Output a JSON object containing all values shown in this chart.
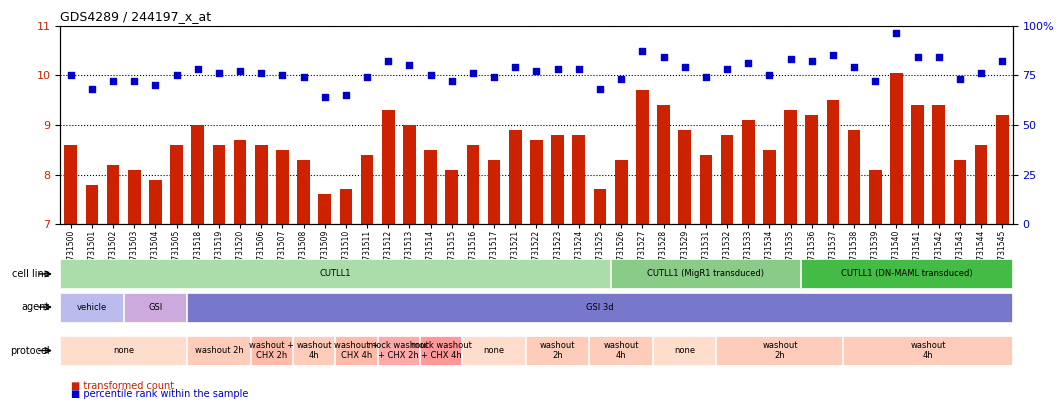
{
  "title": "GDS4289 / 244197_x_at",
  "samples": [
    "GSM731500",
    "GSM731501",
    "GSM731502",
    "GSM731503",
    "GSM731504",
    "GSM731505",
    "GSM731518",
    "GSM731519",
    "GSM731520",
    "GSM731506",
    "GSM731507",
    "GSM731508",
    "GSM731509",
    "GSM731510",
    "GSM731511",
    "GSM731512",
    "GSM731513",
    "GSM731514",
    "GSM731515",
    "GSM731516",
    "GSM731517",
    "GSM731521",
    "GSM731522",
    "GSM731523",
    "GSM731524",
    "GSM731525",
    "GSM731526",
    "GSM731527",
    "GSM731528",
    "GSM731529",
    "GSM731531",
    "GSM731532",
    "GSM731533",
    "GSM731534",
    "GSM731535",
    "GSM731536",
    "GSM731537",
    "GSM731538",
    "GSM731539",
    "GSM731540",
    "GSM731541",
    "GSM731542",
    "GSM731543",
    "GSM731544",
    "GSM731545"
  ],
  "bar_values": [
    8.6,
    7.8,
    8.2,
    8.1,
    7.9,
    8.6,
    9.0,
    8.6,
    8.7,
    8.6,
    8.5,
    8.3,
    7.6,
    7.7,
    8.4,
    9.3,
    9.0,
    8.5,
    8.1,
    8.6,
    8.3,
    8.9,
    8.7,
    8.8,
    8.8,
    7.7,
    8.3,
    9.7,
    9.4,
    8.9,
    8.4,
    8.8,
    9.1,
    8.5,
    9.3,
    9.2,
    9.5,
    8.9,
    8.1,
    10.05,
    9.4,
    9.4,
    8.3,
    8.6,
    9.2
  ],
  "percentile_values": [
    75,
    68,
    72,
    72,
    70,
    75,
    78,
    76,
    77,
    76,
    75,
    74,
    64,
    65,
    74,
    82,
    80,
    75,
    72,
    76,
    74,
    79,
    77,
    78,
    78,
    68,
    73,
    87,
    84,
    79,
    74,
    78,
    81,
    75,
    83,
    82,
    85,
    79,
    72,
    96,
    84,
    84,
    73,
    76,
    82
  ],
  "bar_color": "#cc2200",
  "dot_color": "#0000cc",
  "ylim_left": [
    7,
    11
  ],
  "ylim_right": [
    0,
    100
  ],
  "yticks_left": [
    7,
    8,
    9,
    10,
    11
  ],
  "yticks_right": [
    0,
    25,
    50,
    75,
    100
  ],
  "cell_line_regions": [
    {
      "label": "CUTLL1",
      "start": 0,
      "end": 26,
      "color": "#aaddaa"
    },
    {
      "label": "CUTLL1 (MigR1 transduced)",
      "start": 26,
      "end": 35,
      "color": "#88cc88"
    },
    {
      "label": "CUTLL1 (DN-MAML transduced)",
      "start": 35,
      "end": 45,
      "color": "#44bb44"
    }
  ],
  "agent_regions": [
    {
      "label": "vehicle",
      "start": 0,
      "end": 3,
      "color": "#bbbbee"
    },
    {
      "label": "GSI",
      "start": 3,
      "end": 6,
      "color": "#ccaadd"
    },
    {
      "label": "GSI 3d",
      "start": 6,
      "end": 45,
      "color": "#7777cc"
    }
  ],
  "protocol_regions": [
    {
      "label": "none",
      "start": 0,
      "end": 6,
      "color": "#ffddcc"
    },
    {
      "label": "washout 2h",
      "start": 6,
      "end": 9,
      "color": "#ffccbb"
    },
    {
      "label": "washout +\nCHX 2h",
      "start": 9,
      "end": 11,
      "color": "#ffbbaa"
    },
    {
      "label": "washout\n4h",
      "start": 11,
      "end": 13,
      "color": "#ffccbb"
    },
    {
      "label": "washout +\nCHX 4h",
      "start": 13,
      "end": 15,
      "color": "#ffbbaa"
    },
    {
      "label": "mock washout\n+ CHX 2h",
      "start": 15,
      "end": 17,
      "color": "#ffaaaa"
    },
    {
      "label": "mock washout\n+ CHX 4h",
      "start": 17,
      "end": 19,
      "color": "#ff9999"
    },
    {
      "label": "none",
      "start": 19,
      "end": 22,
      "color": "#ffddcc"
    },
    {
      "label": "washout\n2h",
      "start": 22,
      "end": 25,
      "color": "#ffccbb"
    },
    {
      "label": "washout\n4h",
      "start": 25,
      "end": 28,
      "color": "#ffccbb"
    },
    {
      "label": "none",
      "start": 28,
      "end": 31,
      "color": "#ffddcc"
    },
    {
      "label": "washout\n2h",
      "start": 31,
      "end": 37,
      "color": "#ffccbb"
    },
    {
      "label": "washout\n4h",
      "start": 37,
      "end": 45,
      "color": "#ffccbb"
    }
  ],
  "legend_bar_label": "transformed count",
  "legend_dot_label": "percentile rank within the sample"
}
